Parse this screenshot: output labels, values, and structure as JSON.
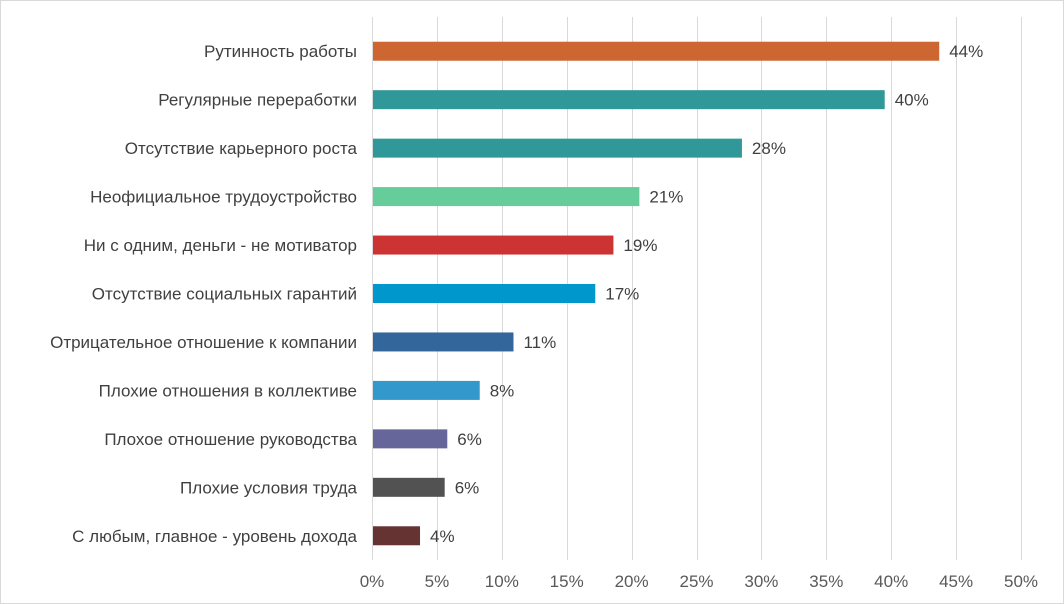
{
  "chart_data": {
    "type": "bar",
    "orientation": "horizontal",
    "categories": [
      "Рутинность работы",
      "Регулярные переработки",
      "Отсутствие карьерного роста",
      "Неофициальное трудоустройство",
      "Ни с одним, деньги - не мотиватор",
      "Отсутствие социальных гарантий",
      "Отрицательное отношение к компании",
      "Плохие отношения в коллективе",
      "Плохое отношение руководства",
      "Плохие условия труда",
      "С любым, главное - уровень дохода"
    ],
    "values": [
      43.7,
      39.5,
      28.5,
      20.6,
      18.6,
      17.2,
      10.9,
      8.3,
      5.8,
      5.6,
      3.7
    ],
    "value_labels": [
      "44%",
      "40%",
      "28%",
      "21%",
      "19%",
      "17%",
      "11%",
      "8%",
      "6%",
      "6%",
      "4%"
    ],
    "colors": [
      "#cd6631",
      "#31989a",
      "#31989a",
      "#66cc99",
      "#cc3333",
      "#0098cc",
      "#33669a",
      "#3399cc",
      "#66669a",
      "#525252",
      "#663333"
    ],
    "xlim": [
      0,
      50
    ],
    "xticks": [
      0,
      5,
      10,
      15,
      20,
      25,
      30,
      35,
      40,
      45,
      50
    ],
    "xtick_labels": [
      "0%",
      "5%",
      "10%",
      "15%",
      "20%",
      "25%",
      "30%",
      "35%",
      "40%",
      "45%",
      "50%"
    ],
    "grid": true,
    "legend": "none",
    "gridline_color": "#d9d9d9",
    "label_color": "#404040"
  }
}
